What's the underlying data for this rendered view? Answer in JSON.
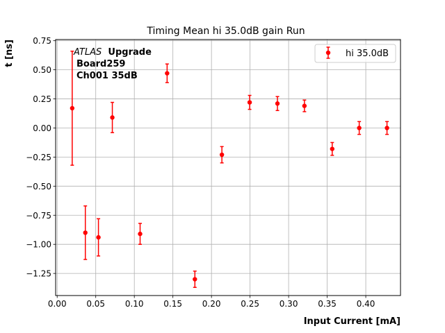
{
  "chart_data": {
    "type": "scatter",
    "title": "Timing Mean hi 35.0dB gain Run",
    "xlabel": "Input Current [mA]",
    "ylabel": "t [ns]",
    "xlim": [
      -0.002,
      0.445
    ],
    "ylim": [
      -1.44,
      0.76
    ],
    "xticks": [
      "0.00",
      "0.05",
      "0.10",
      "0.15",
      "0.20",
      "0.25",
      "0.30",
      "0.35",
      "0.40"
    ],
    "xtick_values": [
      0.0,
      0.05,
      0.1,
      0.15,
      0.2,
      0.25,
      0.3,
      0.35,
      0.4
    ],
    "yticks": [
      "−1.25",
      "−1.00",
      "−0.75",
      "−0.50",
      "−0.25",
      "0.00",
      "0.25",
      "0.50",
      "0.75"
    ],
    "ytick_values": [
      -1.25,
      -1.0,
      -0.75,
      -0.5,
      -0.25,
      0.0,
      0.25,
      0.5,
      0.75
    ],
    "grid": true,
    "legend_position": "top-right",
    "annotation": {
      "atlas": "ATLAS",
      "upgrade": "Upgrade",
      "board": "Board259",
      "channel": "Ch001 35dB"
    },
    "series": [
      {
        "name": "hi 35.0dB",
        "color": "#ff0000",
        "points": [
          {
            "x": 0.0195,
            "y": 0.17,
            "err": 0.49
          },
          {
            "x": 0.0365,
            "y": -0.9,
            "err": 0.23
          },
          {
            "x": 0.0535,
            "y": -0.94,
            "err": 0.16
          },
          {
            "x": 0.0715,
            "y": 0.09,
            "err": 0.13
          },
          {
            "x": 0.1075,
            "y": -0.91,
            "err": 0.09
          },
          {
            "x": 0.1425,
            "y": 0.47,
            "err": 0.08
          },
          {
            "x": 0.1785,
            "y": -1.3,
            "err": 0.07
          },
          {
            "x": 0.2135,
            "y": -0.23,
            "err": 0.07
          },
          {
            "x": 0.2495,
            "y": 0.22,
            "err": 0.06
          },
          {
            "x": 0.2855,
            "y": 0.21,
            "err": 0.06
          },
          {
            "x": 0.3205,
            "y": 0.19,
            "err": 0.05
          },
          {
            "x": 0.3565,
            "y": -0.18,
            "err": 0.055
          },
          {
            "x": 0.3915,
            "y": 0.0,
            "err": 0.055
          },
          {
            "x": 0.4275,
            "y": 0.0,
            "err": 0.055
          }
        ]
      }
    ]
  }
}
